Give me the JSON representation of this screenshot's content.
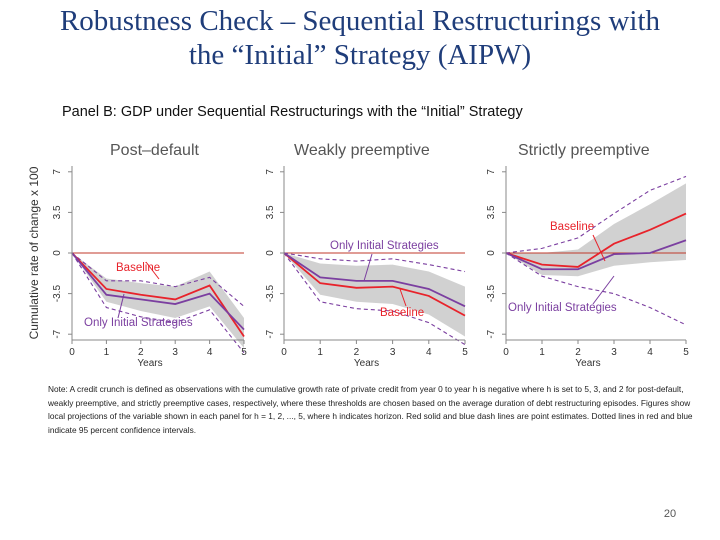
{
  "slide": {
    "title_line1": "Robustness Check – Sequential Restructurings with",
    "title_line2": "the “Initial” Strategy (AIPW)",
    "panel_heading": "Panel B: GDP under Sequential Restructurings with the “Initial” Strategy",
    "note": "Note: A credit crunch is defined as observations with the cumulative growth rate of private credit from year 0 to year h is negative where h is set to 5, 3, and 2 for post-default, weakly preemptive, and strictly preemptive cases, respectively, where these thresholds are chosen based on the average duration of debt restructuring episodes. Figures show local projections of the variable shown in each panel for h = 1, 2, ..., 5, where h indicates horizon. Red solid and blue dash lines are point estimates. Dotted lines in red and blue indicate 95 percent confidence intervals.",
    "page_number": "20"
  },
  "colors": {
    "title": "#1f3d7a",
    "baseline": "#e8232b",
    "initial": "#7b3fa0",
    "band": "#c9c9c9",
    "ci_dash": "#7b3fa0",
    "zero_line": "#c0392b"
  },
  "chart_data": [
    {
      "type": "line",
      "title": "Post–default",
      "ylabel": "Cumulative rate of change x 100",
      "xlabel": "Years",
      "x": [
        0,
        1,
        2,
        3,
        4,
        5
      ],
      "xticks": [
        "0",
        "1",
        "2",
        "3",
        "4",
        "5"
      ],
      "yticks": [
        "-7",
        "-3.5",
        "0",
        "3.5",
        "7"
      ],
      "ylim": [
        -7.5,
        7.5
      ],
      "series": [
        {
          "name": "Baseline",
          "values": [
            0,
            -3.1,
            -3.6,
            -4.0,
            -2.8,
            -7.2
          ]
        },
        {
          "name": "Only Initial Strategies",
          "values": [
            0,
            -3.6,
            -4.0,
            -4.4,
            -3.5,
            -6.6
          ]
        }
      ],
      "band": {
        "lower": [
          0,
          -4.2,
          -5.0,
          -5.6,
          -4.6,
          -8.2
        ],
        "upper": [
          0,
          -2.2,
          -2.6,
          -2.9,
          -1.6,
          -5.6
        ]
      },
      "ci_dashed": {
        "lower": [
          0,
          -4.7,
          -5.5,
          -6.0,
          -4.9,
          -8.6
        ],
        "upper": [
          0,
          -2.4,
          -2.4,
          -2.9,
          -2.1,
          -4.6
        ]
      },
      "annotations": [
        "Baseline",
        "Only Initial Strategies"
      ]
    },
    {
      "type": "line",
      "title": "Weakly preemptive",
      "xlabel": "Years",
      "x": [
        0,
        1,
        2,
        3,
        4,
        5
      ],
      "xticks": [
        "0",
        "1",
        "2",
        "3",
        "4",
        "5"
      ],
      "yticks": [
        "-7",
        "-3.5",
        "0",
        "3.5",
        "7"
      ],
      "ylim": [
        -7.5,
        7.5
      ],
      "series": [
        {
          "name": "Baseline",
          "values": [
            0,
            -2.6,
            -3.0,
            -2.9,
            -3.7,
            -5.4
          ]
        },
        {
          "name": "Only Initial Strategies",
          "values": [
            0,
            -2.1,
            -2.4,
            -2.4,
            -3.1,
            -4.6
          ]
        }
      ],
      "band": {
        "lower": [
          0,
          -3.6,
          -4.2,
          -4.4,
          -5.3,
          -7.2
        ],
        "upper": [
          0,
          -0.9,
          -1.1,
          -1.0,
          -1.6,
          -2.9
        ]
      },
      "ci_dashed": {
        "lower": [
          0,
          -4.2,
          -4.8,
          -5.0,
          -6.0,
          -7.9
        ],
        "upper": [
          0,
          -0.5,
          -0.7,
          -0.5,
          -1.0,
          -1.6
        ]
      },
      "annotations": [
        "Only Initial Strategies",
        "Baseline"
      ]
    },
    {
      "type": "line",
      "title": "Strictly preemptive",
      "xlabel": "Years",
      "x": [
        0,
        1,
        2,
        3,
        4,
        5
      ],
      "xticks": [
        "0",
        "1",
        "2",
        "3",
        "4",
        "5"
      ],
      "yticks": [
        "-7",
        "-3.5",
        "0",
        "3.5",
        "7"
      ],
      "ylim": [
        -7.5,
        7.5
      ],
      "series": [
        {
          "name": "Baseline",
          "values": [
            0,
            -1.0,
            -1.2,
            0.8,
            2.0,
            3.4
          ]
        },
        {
          "name": "Only Initial Strategies",
          "values": [
            0,
            -1.4,
            -1.4,
            -0.1,
            0.0,
            1.1
          ]
        }
      ],
      "band": {
        "lower": [
          0,
          -1.9,
          -2.0,
          -1.1,
          -0.8,
          -0.6
        ],
        "upper": [
          0,
          0.0,
          0.3,
          2.5,
          4.2,
          6.0
        ]
      },
      "ci_dashed": {
        "lower": [
          0,
          -2.0,
          -2.9,
          -3.5,
          -4.7,
          -6.2
        ],
        "upper": [
          0,
          0.4,
          1.3,
          3.4,
          5.4,
          6.6
        ]
      },
      "annotations": [
        "Baseline",
        "Only Initial Strategies"
      ]
    }
  ]
}
